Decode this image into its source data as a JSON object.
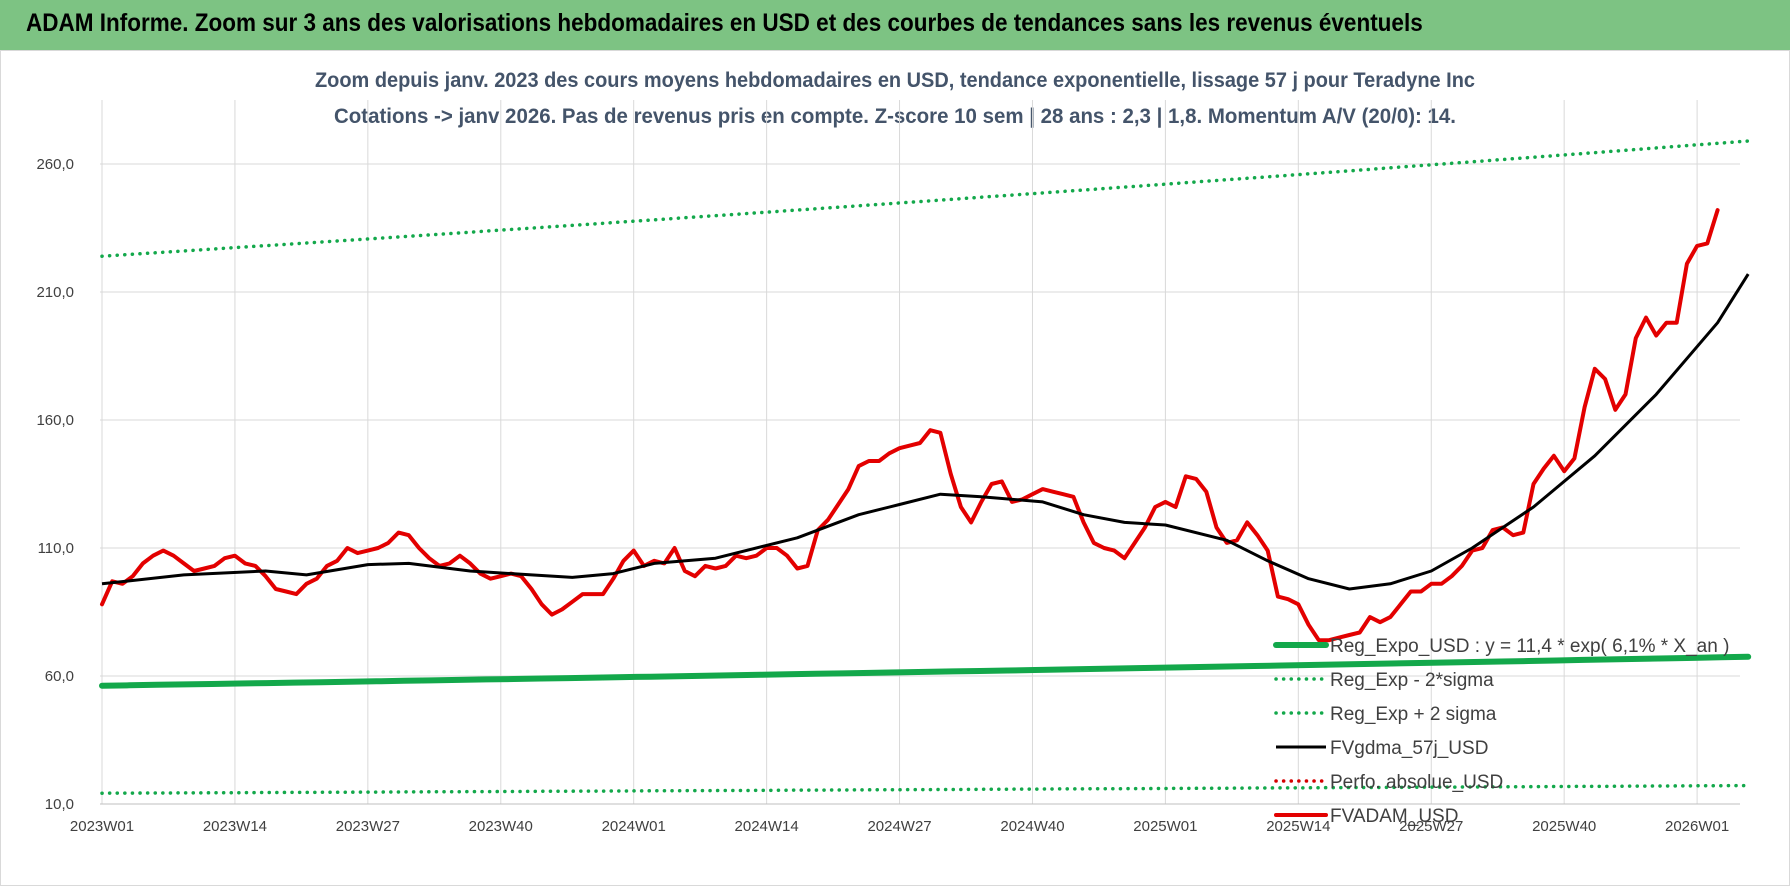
{
  "banner": {
    "title": "ADAM Informe. Zoom sur 3 ans des valorisations hebdomadaires en USD et des courbes de tendances sans les revenus éventuels"
  },
  "chart_data": {
    "type": "line",
    "title": "Zoom depuis janv. 2023 des cours moyens hebdomadaires en USD, tendance exponentielle, lissage 57 j pour Teradyne Inc",
    "subtitle": "Cotations -> janv 2026. Pas de revenus pris en compte. Z-score 10 sem  | 28 ans : 2,3 | 1,8. Momentum A/V (20/0): 14.",
    "xlabel": "",
    "ylabel": "",
    "ylim": [
      10,
      285
    ],
    "y_ticks": [
      "10,0",
      "60,0",
      "110,0",
      "160,0",
      "210,0",
      "260,0"
    ],
    "y_tick_values": [
      10,
      60,
      110,
      160,
      210,
      260
    ],
    "x_tick_labels": [
      "2023W01",
      "2023W14",
      "2023W27",
      "2023W40",
      "2024W01",
      "2024W14",
      "2024W27",
      "2024W40",
      "2025W01",
      "2025W14",
      "2025W27",
      "2025W40",
      "2026W01"
    ],
    "x_tick_index": [
      0,
      13,
      26,
      39,
      52,
      65,
      78,
      91,
      104,
      117,
      130,
      143,
      156
    ],
    "n_weeks": 161,
    "grid": true,
    "legend_position": "right",
    "series": [
      {
        "name": "Reg_Expo_USD : y = 11,4 * exp( 6,1% *  X_an )",
        "style": "thick-solid",
        "color": "#13a84b",
        "keypoints": [
          [
            0,
            56.2
          ],
          [
            161,
            67.5
          ]
        ]
      },
      {
        "name": "Reg_Exp - 2*sigma",
        "style": "dotted",
        "color": "#13a84b",
        "keypoints": [
          [
            0,
            14.2
          ],
          [
            161,
            17.2
          ]
        ]
      },
      {
        "name": "Reg_Exp + 2 sigma",
        "style": "dotted",
        "color": "#13a84b",
        "keypoints": [
          [
            0,
            224
          ],
          [
            161,
            269
          ]
        ]
      },
      {
        "name": "FVgdma_57j_USD",
        "style": "solid",
        "color": "#000000",
        "keypoints": [
          [
            0,
            96
          ],
          [
            8,
            99.5
          ],
          [
            16,
            101
          ],
          [
            20,
            99.5
          ],
          [
            26,
            103.5
          ],
          [
            30,
            104
          ],
          [
            36,
            101
          ],
          [
            42,
            99.5
          ],
          [
            46,
            98.5
          ],
          [
            50,
            100
          ],
          [
            54,
            104
          ],
          [
            60,
            106
          ],
          [
            68,
            114
          ],
          [
            74,
            123
          ],
          [
            78,
            127
          ],
          [
            82,
            131
          ],
          [
            86,
            130
          ],
          [
            92,
            128
          ],
          [
            96,
            123
          ],
          [
            100,
            120
          ],
          [
            104,
            119
          ],
          [
            110,
            113
          ],
          [
            114,
            105
          ],
          [
            118,
            98
          ],
          [
            122,
            94
          ],
          [
            126,
            96
          ],
          [
            130,
            101
          ],
          [
            134,
            110
          ],
          [
            140,
            126
          ],
          [
            146,
            146
          ],
          [
            152,
            170
          ],
          [
            158,
            198
          ],
          [
            161,
            217
          ]
        ]
      },
      {
        "name": "Perfo. absolue_USD",
        "style": "dotted",
        "color": "#d40000",
        "keypoints": []
      },
      {
        "name": "FVADAM_USD",
        "style": "thick-solid",
        "color": "#e30000",
        "keypoints": [
          [
            0,
            88
          ],
          [
            1,
            97
          ],
          [
            2,
            96
          ],
          [
            3,
            99
          ],
          [
            4,
            104
          ],
          [
            5,
            107
          ],
          [
            6,
            109
          ],
          [
            7,
            107
          ],
          [
            8,
            104
          ],
          [
            9,
            101
          ],
          [
            10,
            102
          ],
          [
            11,
            103
          ],
          [
            12,
            106
          ],
          [
            13,
            107
          ],
          [
            14,
            104
          ],
          [
            15,
            103
          ],
          [
            16,
            99
          ],
          [
            17,
            94
          ],
          [
            18,
            93
          ],
          [
            19,
            92
          ],
          [
            20,
            96
          ],
          [
            21,
            98
          ],
          [
            22,
            103
          ],
          [
            23,
            105
          ],
          [
            24,
            110
          ],
          [
            25,
            108
          ],
          [
            26,
            109
          ],
          [
            27,
            110
          ],
          [
            28,
            112
          ],
          [
            29,
            116
          ],
          [
            30,
            115
          ],
          [
            31,
            110
          ],
          [
            32,
            106
          ],
          [
            33,
            103
          ],
          [
            34,
            104
          ],
          [
            35,
            107
          ],
          [
            36,
            104
          ],
          [
            37,
            100
          ],
          [
            38,
            98
          ],
          [
            39,
            99
          ],
          [
            40,
            100
          ],
          [
            41,
            99
          ],
          [
            42,
            94
          ],
          [
            43,
            88
          ],
          [
            44,
            84
          ],
          [
            45,
            86
          ],
          [
            46,
            89
          ],
          [
            47,
            92
          ],
          [
            48,
            92
          ],
          [
            49,
            92
          ],
          [
            50,
            98
          ],
          [
            51,
            105
          ],
          [
            52,
            109
          ],
          [
            53,
            103
          ],
          [
            54,
            105
          ],
          [
            55,
            104
          ],
          [
            56,
            110
          ],
          [
            57,
            101
          ],
          [
            58,
            99
          ],
          [
            59,
            103
          ],
          [
            60,
            102
          ],
          [
            61,
            103
          ],
          [
            62,
            107
          ],
          [
            63,
            106
          ],
          [
            64,
            107
          ],
          [
            65,
            110
          ],
          [
            66,
            110
          ],
          [
            67,
            107
          ],
          [
            68,
            102
          ],
          [
            69,
            103
          ],
          [
            70,
            117
          ],
          [
            71,
            121
          ],
          [
            72,
            127
          ],
          [
            73,
            133
          ],
          [
            74,
            142
          ],
          [
            75,
            144
          ],
          [
            76,
            144
          ],
          [
            77,
            147
          ],
          [
            78,
            149
          ],
          [
            79,
            150
          ],
          [
            80,
            151
          ],
          [
            81,
            156
          ],
          [
            82,
            155
          ],
          [
            83,
            139
          ],
          [
            84,
            126
          ],
          [
            85,
            120
          ],
          [
            86,
            128
          ],
          [
            87,
            135
          ],
          [
            88,
            136
          ],
          [
            89,
            128
          ],
          [
            90,
            129
          ],
          [
            91,
            131
          ],
          [
            92,
            133
          ],
          [
            93,
            132
          ],
          [
            94,
            131
          ],
          [
            95,
            130
          ],
          [
            96,
            120
          ],
          [
            97,
            112
          ],
          [
            98,
            110
          ],
          [
            99,
            109
          ],
          [
            100,
            106
          ],
          [
            101,
            112
          ],
          [
            102,
            118
          ],
          [
            103,
            126
          ],
          [
            104,
            128
          ],
          [
            105,
            126
          ],
          [
            106,
            138
          ],
          [
            107,
            137
          ],
          [
            108,
            132
          ],
          [
            109,
            118
          ],
          [
            110,
            112
          ],
          [
            111,
            113
          ],
          [
            112,
            120
          ],
          [
            113,
            115
          ],
          [
            114,
            109
          ],
          [
            115,
            91
          ],
          [
            116,
            90
          ],
          [
            117,
            88
          ],
          [
            118,
            80
          ],
          [
            119,
            74
          ],
          [
            120,
            74
          ],
          [
            121,
            75
          ],
          [
            122,
            76
          ],
          [
            123,
            77
          ],
          [
            124,
            83
          ],
          [
            125,
            81
          ],
          [
            126,
            83
          ],
          [
            127,
            88
          ],
          [
            128,
            93
          ],
          [
            129,
            93
          ],
          [
            130,
            96
          ],
          [
            131,
            96
          ],
          [
            132,
            99
          ],
          [
            133,
            103
          ],
          [
            134,
            109
          ],
          [
            135,
            110
          ],
          [
            136,
            117
          ],
          [
            137,
            118
          ],
          [
            138,
            115
          ],
          [
            139,
            116
          ],
          [
            140,
            135
          ],
          [
            141,
            141
          ],
          [
            142,
            146
          ],
          [
            143,
            140
          ],
          [
            144,
            145
          ],
          [
            145,
            165
          ],
          [
            146,
            180
          ],
          [
            147,
            176
          ],
          [
            148,
            164
          ],
          [
            149,
            170
          ],
          [
            150,
            192
          ],
          [
            151,
            200
          ],
          [
            152,
            193
          ],
          [
            153,
            198
          ],
          [
            154,
            198
          ],
          [
            155,
            221
          ],
          [
            156,
            228
          ],
          [
            157,
            229
          ],
          [
            158,
            242
          ]
        ]
      }
    ]
  }
}
